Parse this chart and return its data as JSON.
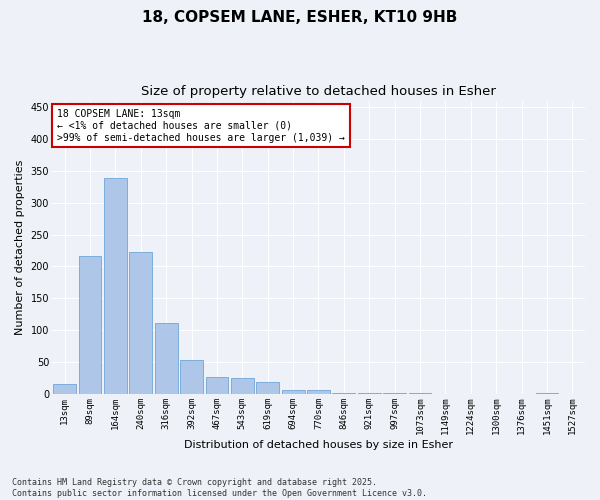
{
  "title_line1": "18, COPSEM LANE, ESHER, KT10 9HB",
  "title_line2": "Size of property relative to detached houses in Esher",
  "xlabel": "Distribution of detached houses by size in Esher",
  "ylabel": "Number of detached properties",
  "categories": [
    "13sqm",
    "89sqm",
    "164sqm",
    "240sqm",
    "316sqm",
    "392sqm",
    "467sqm",
    "543sqm",
    "619sqm",
    "694sqm",
    "770sqm",
    "846sqm",
    "921sqm",
    "997sqm",
    "1073sqm",
    "1149sqm",
    "1224sqm",
    "1300sqm",
    "1376sqm",
    "1451sqm",
    "1527sqm"
  ],
  "values": [
    15,
    216,
    338,
    222,
    112,
    54,
    27,
    25,
    19,
    7,
    6,
    2,
    1,
    1,
    1,
    0,
    0,
    0,
    0,
    1,
    0
  ],
  "bar_color": "#aec6e8",
  "bar_edgecolor": "#5b9bd5",
  "annotation_text": "18 COPSEM LANE: 13sqm\n← <1% of detached houses are smaller (0)\n>99% of semi-detached houses are larger (1,039) →",
  "annotation_box_color": "#ffffff",
  "annotation_box_edgecolor": "#cc0000",
  "highlight_bar_index": 0,
  "ylim": [
    0,
    460
  ],
  "yticks": [
    0,
    50,
    100,
    150,
    200,
    250,
    300,
    350,
    400,
    450
  ],
  "footer_line1": "Contains HM Land Registry data © Crown copyright and database right 2025.",
  "footer_line2": "Contains public sector information licensed under the Open Government Licence v3.0.",
  "background_color": "#eef2f8",
  "grid_color": "#ffffff",
  "title_fontsize": 11,
  "subtitle_fontsize": 9.5,
  "tick_fontsize": 6.5,
  "label_fontsize": 8,
  "footer_fontsize": 6,
  "annotation_fontsize": 7
}
